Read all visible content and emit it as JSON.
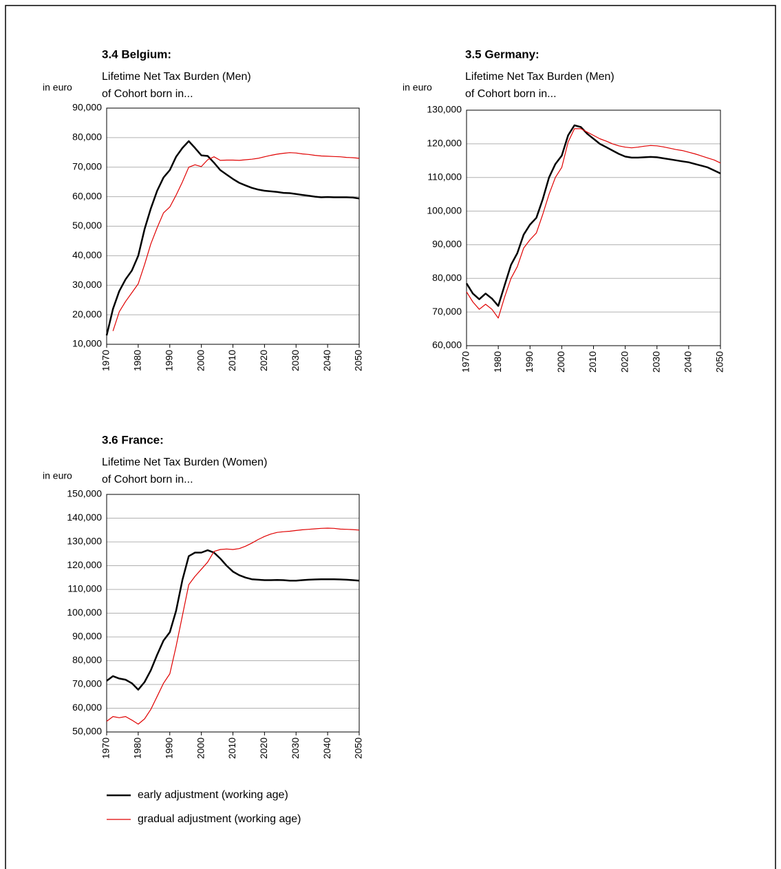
{
  "chart_data": [
    {
      "type": "line",
      "title": "3.4 Belgium:",
      "subtitle": [
        "Lifetime Net Tax Burden (Men)",
        "of Cohort born in..."
      ],
      "y_label": "in euro",
      "x": [
        1970,
        1972,
        1974,
        1976,
        1978,
        1980,
        1982,
        1984,
        1986,
        1988,
        1990,
        1992,
        1994,
        1996,
        1998,
        2000,
        2002,
        2004,
        2006,
        2008,
        2010,
        2012,
        2014,
        2016,
        2018,
        2020,
        2022,
        2024,
        2026,
        2028,
        2030,
        2032,
        2034,
        2036,
        2038,
        2040,
        2042,
        2044,
        2046,
        2048,
        2050
      ],
      "xlim": [
        1970,
        2050
      ],
      "xticks": [
        1970,
        1980,
        1990,
        2000,
        2010,
        2020,
        2030,
        2040,
        2050
      ],
      "ylim": [
        10000,
        90000
      ],
      "yticks": [
        {
          "value": 10000,
          "label": "10,000"
        },
        {
          "value": 20000,
          "label": "20,000"
        },
        {
          "value": 30000,
          "label": "30,000"
        },
        {
          "value": 40000,
          "label": "40,000"
        },
        {
          "value": 50000,
          "label": "50,000"
        },
        {
          "value": 60000,
          "label": "60,000"
        },
        {
          "value": 70000,
          "label": "70,000"
        },
        {
          "value": 80000,
          "label": "80,000"
        },
        {
          "value": 90000,
          "label": "90,000"
        }
      ],
      "grid": true,
      "series": [
        {
          "name": "early adjustment (working age)",
          "color": "#000000",
          "values": [
            13000,
            22000,
            28000,
            32000,
            35000,
            40000,
            49000,
            56000,
            62000,
            66500,
            69000,
            73500,
            76500,
            78800,
            76500,
            74000,
            73800,
            71500,
            69000,
            67500,
            66000,
            64700,
            63800,
            63000,
            62400,
            62000,
            61800,
            61600,
            61300,
            61200,
            60900,
            60600,
            60300,
            60000,
            59800,
            59900,
            59800,
            59800,
            59800,
            59700,
            59400
          ]
        },
        {
          "name": "gradual adjustment (working age)",
          "color": "#e00000",
          "values": [
            null,
            14500,
            21000,
            24500,
            27500,
            30500,
            37000,
            44000,
            49500,
            54500,
            56500,
            60500,
            65000,
            70000,
            70800,
            70200,
            72500,
            73500,
            72300,
            72400,
            72400,
            72300,
            72500,
            72700,
            73000,
            73500,
            74000,
            74400,
            74700,
            74900,
            74800,
            74500,
            74300,
            74000,
            73800,
            73700,
            73600,
            73500,
            73300,
            73200,
            73000
          ]
        }
      ]
    },
    {
      "type": "line",
      "title": "3.5 Germany:",
      "subtitle": [
        "Lifetime Net Tax Burden (Men)",
        "of Cohort born in..."
      ],
      "y_label": "in euro",
      "x": [
        1970,
        1972,
        1974,
        1976,
        1978,
        1980,
        1982,
        1984,
        1986,
        1988,
        1990,
        1992,
        1994,
        1996,
        1998,
        2000,
        2002,
        2004,
        2006,
        2008,
        2010,
        2012,
        2014,
        2016,
        2018,
        2020,
        2022,
        2024,
        2026,
        2028,
        2030,
        2032,
        2034,
        2036,
        2038,
        2040,
        2042,
        2044,
        2046,
        2048,
        2050
      ],
      "xlim": [
        1970,
        2050
      ],
      "xticks": [
        1970,
        1980,
        1990,
        2000,
        2010,
        2020,
        2030,
        2040,
        2050
      ],
      "ylim": [
        60000,
        130000
      ],
      "yticks": [
        {
          "value": 60000,
          "label": "60,000"
        },
        {
          "value": 70000,
          "label": "70,000"
        },
        {
          "value": 80000,
          "label": "80,000"
        },
        {
          "value": 90000,
          "label": "90,000"
        },
        {
          "value": 100000,
          "label": "100,000"
        },
        {
          "value": 110000,
          "label": "110,000"
        },
        {
          "value": 120000,
          "label": "120,000"
        },
        {
          "value": 130000,
          "label": "130,000"
        }
      ],
      "grid": true,
      "series": [
        {
          "name": "early adjustment (working age)",
          "color": "#000000",
          "values": [
            78500,
            75500,
            73800,
            75500,
            74000,
            71800,
            78000,
            84000,
            87500,
            93000,
            96000,
            98000,
            103500,
            110000,
            114000,
            116500,
            122500,
            125500,
            125000,
            123000,
            121500,
            120000,
            119000,
            118000,
            117000,
            116200,
            115900,
            115900,
            116000,
            116100,
            116000,
            115700,
            115400,
            115100,
            114800,
            114500,
            114000,
            113500,
            113000,
            112100,
            111200
          ]
        },
        {
          "name": "gradual adjustment (working age)",
          "color": "#e00000",
          "values": [
            76000,
            73000,
            70800,
            72300,
            70800,
            68200,
            74500,
            80000,
            83500,
            89000,
            91500,
            93500,
            99000,
            105000,
            110000,
            113000,
            120500,
            124500,
            124500,
            123500,
            122500,
            121500,
            120800,
            120000,
            119400,
            119000,
            118800,
            119000,
            119300,
            119500,
            119400,
            119100,
            118700,
            118300,
            118000,
            117500,
            117000,
            116400,
            115800,
            115200,
            114300
          ]
        }
      ]
    },
    {
      "type": "line",
      "title": "3.6 France:",
      "subtitle": [
        "Lifetime Net Tax Burden (Women)",
        "of Cohort born in..."
      ],
      "y_label": "in euro",
      "x": [
        1970,
        1972,
        1974,
        1976,
        1978,
        1980,
        1982,
        1984,
        1986,
        1988,
        1990,
        1992,
        1994,
        1996,
        1998,
        2000,
        2002,
        2004,
        2006,
        2008,
        2010,
        2012,
        2014,
        2016,
        2018,
        2020,
        2022,
        2024,
        2026,
        2028,
        2030,
        2032,
        2034,
        2036,
        2038,
        2040,
        2042,
        2044,
        2046,
        2048,
        2050
      ],
      "xlim": [
        1970,
        2050
      ],
      "xticks": [
        1970,
        1980,
        1990,
        2000,
        2010,
        2020,
        2030,
        2040,
        2050
      ],
      "ylim": [
        50000,
        150000
      ],
      "yticks": [
        {
          "value": 50000,
          "label": "50,000"
        },
        {
          "value": 60000,
          "label": "60,000"
        },
        {
          "value": 70000,
          "label": "70,000"
        },
        {
          "value": 80000,
          "label": "80,000"
        },
        {
          "value": 90000,
          "label": "90,000"
        },
        {
          "value": 100000,
          "label": "100,000"
        },
        {
          "value": 110000,
          "label": "110,000"
        },
        {
          "value": 120000,
          "label": "120,000"
        },
        {
          "value": 130000,
          "label": "130,000"
        },
        {
          "value": 140000,
          "label": "140,000"
        },
        {
          "value": 150000,
          "label": "150,000"
        }
      ],
      "grid": true,
      "legend": "bottom",
      "series": [
        {
          "name": "early adjustment (working age)",
          "color": "#000000",
          "values": [
            71500,
            73500,
            72500,
            72000,
            70500,
            67800,
            71000,
            76000,
            82500,
            88500,
            92000,
            101000,
            114000,
            124000,
            125500,
            125500,
            126500,
            125500,
            123000,
            120000,
            117500,
            116000,
            115000,
            114300,
            114100,
            113900,
            113900,
            114000,
            113900,
            113700,
            113700,
            113900,
            114100,
            114200,
            114300,
            114300,
            114300,
            114200,
            114100,
            113900,
            113700
          ]
        },
        {
          "name": "gradual adjustment (working age)",
          "color": "#e00000",
          "values": [
            54500,
            56500,
            56000,
            56500,
            55000,
            53300,
            55500,
            59500,
            65000,
            70500,
            74500,
            86000,
            99000,
            112000,
            115500,
            118500,
            121500,
            126000,
            126800,
            127000,
            126800,
            127200,
            128200,
            129500,
            131000,
            132300,
            133300,
            134000,
            134300,
            134500,
            134800,
            135100,
            135300,
            135500,
            135700,
            135800,
            135700,
            135400,
            135300,
            135200,
            135000
          ]
        }
      ]
    }
  ]
}
